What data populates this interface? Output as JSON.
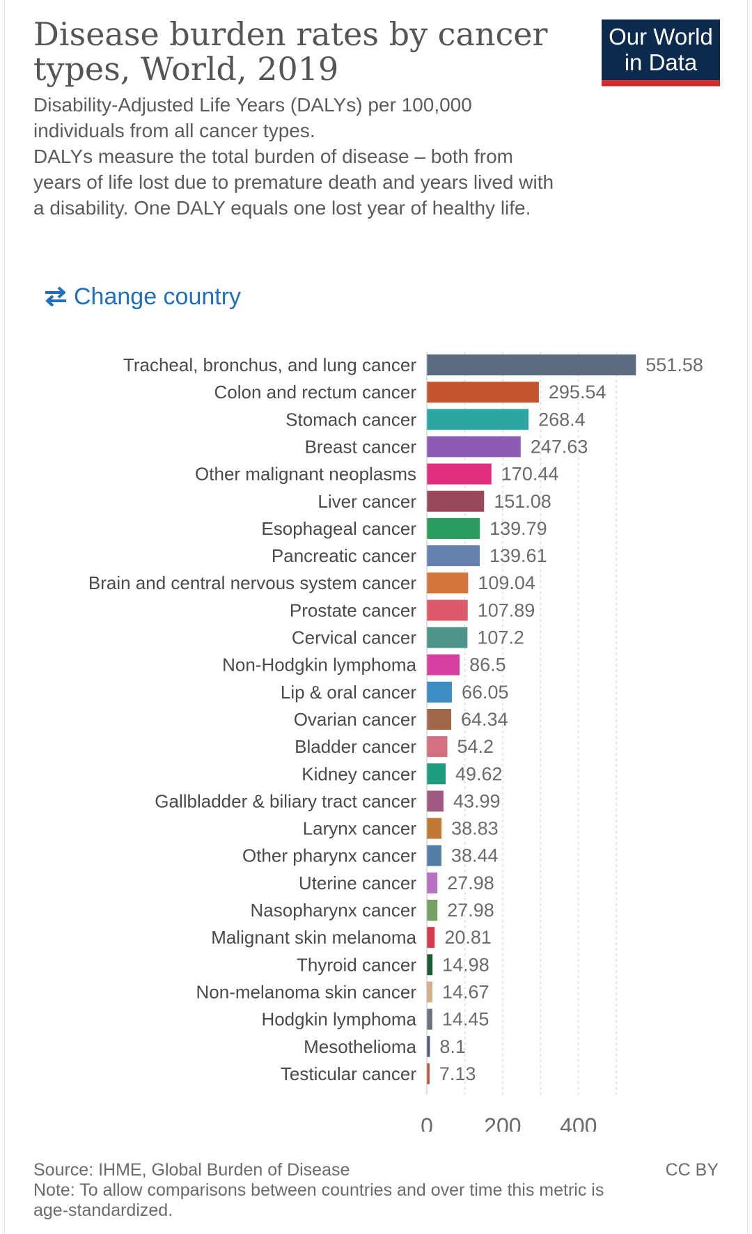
{
  "header": {
    "title": "Disease burden rates by cancer types, World, 2019",
    "subtitle_lines": [
      "Disability-Adjusted Life Years (DALYs) per 100,000 individuals from all cancer types.",
      "DALYs measure the total burden of disease – both from years of life lost due to premature death and years lived with a disability. One DALY equals one lost year of healthy life."
    ],
    "logo_line1": "Our World",
    "logo_line2": "in Data"
  },
  "controls": {
    "change_country_label": "Change country",
    "change_country_icon": "swap-arrows-icon"
  },
  "colors": {
    "logo_background": "#0b2a4e",
    "logo_accent": "#d42b2b",
    "link": "#1f6fbf"
  },
  "chart_data": {
    "type": "bar",
    "orientation": "horizontal",
    "categories": [
      "Tracheal, bronchus, and lung cancer",
      "Colon and rectum cancer",
      "Stomach cancer",
      "Breast cancer",
      "Other malignant neoplasms",
      "Liver cancer",
      "Esophageal cancer",
      "Pancreatic cancer",
      "Brain and central nervous system cancer",
      "Prostate cancer",
      "Cervical cancer",
      "Non-Hodgkin lymphoma",
      "Lip & oral cancer",
      "Ovarian cancer",
      "Bladder cancer",
      "Kidney cancer",
      "Gallbladder & biliary tract cancer",
      "Larynx cancer",
      "Other pharynx cancer",
      "Uterine cancer",
      "Nasopharynx cancer",
      "Malignant skin melanoma",
      "Thyroid cancer",
      "Non-melanoma skin cancer",
      "Hodgkin lymphoma",
      "Mesothelioma",
      "Testicular cancer"
    ],
    "values": [
      551.58,
      295.54,
      268.4,
      247.63,
      170.44,
      151.08,
      139.79,
      139.61,
      109.04,
      107.89,
      107.2,
      86.5,
      66.05,
      64.34,
      54.2,
      49.62,
      43.99,
      38.83,
      38.44,
      27.98,
      27.98,
      20.81,
      14.98,
      14.67,
      14.45,
      8.1,
      7.13
    ],
    "value_labels": [
      "551.58",
      "295.54",
      "268.4",
      "247.63",
      "170.44",
      "151.08",
      "139.79",
      "139.61",
      "109.04",
      "107.89",
      "107.2",
      "86.5",
      "66.05",
      "64.34",
      "54.2",
      "49.62",
      "43.99",
      "38.83",
      "38.44",
      "27.98",
      "27.98",
      "20.81",
      "14.98",
      "14.67",
      "14.45",
      "8.1",
      "7.13"
    ],
    "colors": [
      "#5b6a80",
      "#c2552d",
      "#2aa5a1",
      "#8c5bb3",
      "#df2f7e",
      "#98485a",
      "#2a9d5f",
      "#6680b0",
      "#d2763a",
      "#dd5a6a",
      "#4f9489",
      "#d63ea0",
      "#3b8ec2",
      "#a06849",
      "#d4707f",
      "#1f9c7f",
      "#a05a82",
      "#c07a34",
      "#557ea6",
      "#b870c0",
      "#74a062",
      "#d63a4a",
      "#1f5a31",
      "#d4b08a",
      "#6b7280",
      "#4b5b78",
      "#c0503a"
    ],
    "xticks": [
      0,
      200,
      400
    ],
    "xtick_labels": [
      "0",
      "200",
      "400"
    ],
    "xlim": [
      0,
      551.58
    ],
    "gridlines": [
      0,
      100,
      200,
      300,
      400,
      500
    ],
    "grid": true,
    "title": "Disease burden rates by cancer types, World, 2019"
  },
  "footer": {
    "source": "Source: IHME, Global Burden of Disease",
    "note": "Note: To allow comparisons between countries and over time this metric is age-standardized.",
    "license": "CC BY"
  }
}
